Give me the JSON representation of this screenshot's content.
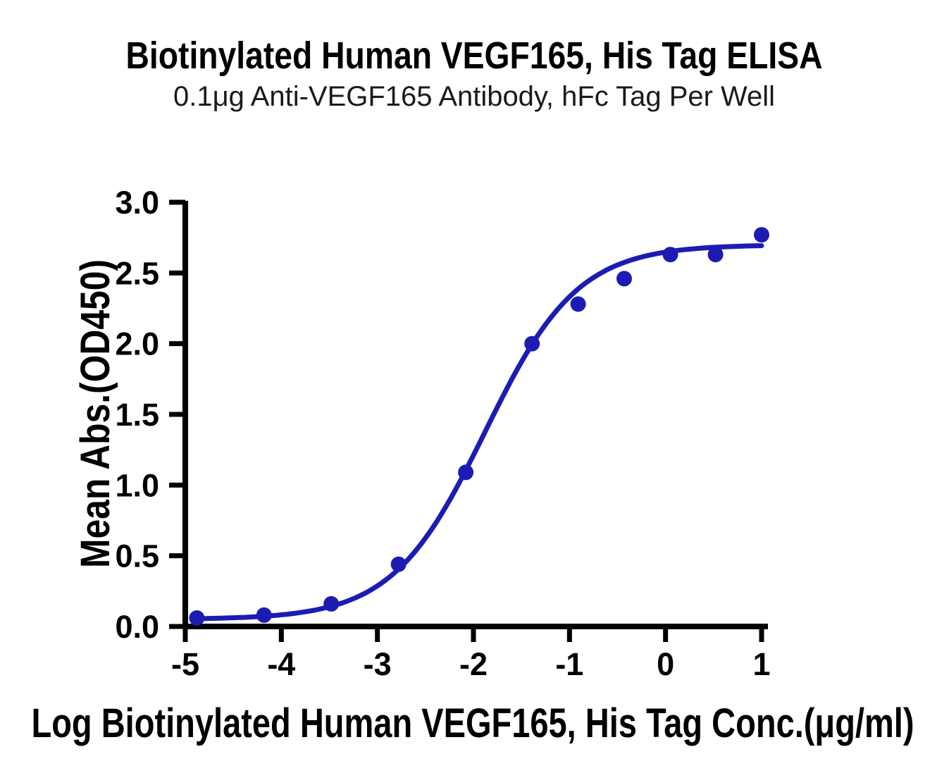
{
  "header": {
    "title": "Biotinylated Human VEGF165, His Tag ELISA",
    "subtitle": "0.1μg Anti-VEGF165 Antibody, hFc Tag Per Well"
  },
  "colors": {
    "curve_blue": "#1c1cb4",
    "axis_black": "#000000",
    "background": "#ffffff"
  },
  "chart_data": {
    "type": "scatter",
    "title": "Biotinylated Human VEGF165, His Tag ELISA",
    "subtitle": "0.1μg Anti-VEGF165 Antibody, hFc Tag Per Well",
    "xlabel": "Log Biotinylated Human VEGF165, His Tag Conc.(μg/ml)",
    "ylabel": "Mean Abs.(OD450)",
    "xlim": [
      -5,
      1.07
    ],
    "ylim": [
      0,
      3.0
    ],
    "grid": false,
    "legend": "none",
    "x_ticks": [
      {
        "value": -5,
        "label": "-5"
      },
      {
        "value": -4,
        "label": "-4"
      },
      {
        "value": -3,
        "label": "-3"
      },
      {
        "value": -2,
        "label": "-2"
      },
      {
        "value": -1,
        "label": "-1"
      },
      {
        "value": 0,
        "label": "0"
      },
      {
        "value": 1,
        "label": "1"
      }
    ],
    "y_ticks": [
      {
        "value": 0.0,
        "label": "0.0"
      },
      {
        "value": 0.5,
        "label": "0.5"
      },
      {
        "value": 1.0,
        "label": "1.0"
      },
      {
        "value": 1.5,
        "label": "1.5"
      },
      {
        "value": 2.0,
        "label": "2.0"
      },
      {
        "value": 2.5,
        "label": "2.5"
      },
      {
        "value": 3.0,
        "label": "3.0"
      }
    ],
    "series": [
      {
        "color": "#1c1cb4",
        "marker": "circle",
        "points": [
          {
            "x": -4.88,
            "y": 0.06
          },
          {
            "x": -4.18,
            "y": 0.08
          },
          {
            "x": -3.48,
            "y": 0.16
          },
          {
            "x": -2.78,
            "y": 0.44
          },
          {
            "x": -2.08,
            "y": 1.09
          },
          {
            "x": -1.39,
            "y": 2.0
          },
          {
            "x": -0.91,
            "y": 2.28
          },
          {
            "x": -0.43,
            "y": 2.46
          },
          {
            "x": 0.05,
            "y": 2.63
          },
          {
            "x": 0.52,
            "y": 2.63
          },
          {
            "x": 1.0,
            "y": 2.77
          }
        ]
      }
    ],
    "fit_curve": {
      "model": "4PL",
      "bottom": 0.05,
      "top": 2.7,
      "logEC50": -1.88,
      "hillslope": 0.9,
      "x_start": -4.88,
      "x_end": 1.0
    }
  }
}
